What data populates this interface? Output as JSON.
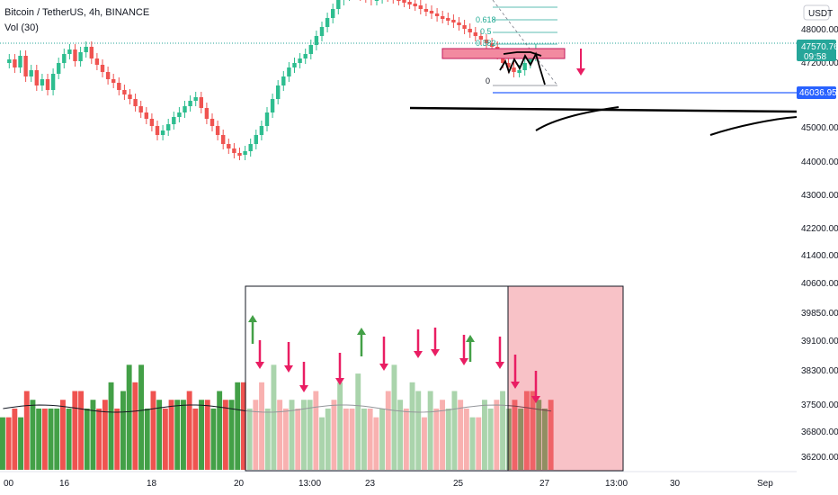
{
  "header": {
    "symbol_title": "Bitcoin / TetherUS, 4h, BINANCE",
    "volume_indicator": "Vol (30)"
  },
  "currency_button": "USDT",
  "price_badges": {
    "last_price": "47570.76",
    "countdown": "09:58",
    "level_price": "46036.95"
  },
  "colors": {
    "up": "#26a69a",
    "bull_candle": "#2dbd8f",
    "bear_candle": "#ef5350",
    "vol_up": "#43a047",
    "vol_down": "#ef5350",
    "arrow_down": "#e91e63",
    "arrow_up": "#43a047",
    "level_line": "#2962ff",
    "zone_fill": "#f0a0a8"
  },
  "fib_labels": [
    "0.618",
    "0.5",
    "0.382",
    "0"
  ],
  "chart_data": {
    "type": "candlestick",
    "title": "Bitcoin / TetherUS, 4h, BINANCE",
    "ylim": [
      35900,
      48900
    ],
    "y_ticks": [
      48000,
      47200,
      46400,
      45000,
      44000,
      43000,
      42200,
      41400,
      40600,
      39850,
      39100,
      38300,
      37500,
      36800,
      36200
    ],
    "y_tick_labels": [
      "48000.00",
      "47200.00",
      "",
      "45000.00",
      "44000.00",
      "43000.00",
      "42200.00",
      "41400.00",
      "40600.00",
      "39850.00",
      "39100.00",
      "38300.00",
      "37500.00",
      "36800.00",
      "36200.00"
    ],
    "x_tick_labels": [
      "00",
      "16",
      "18",
      "20",
      "13:00",
      "23",
      "25",
      "27",
      "13:00",
      "30",
      "Sep"
    ],
    "last_price": 47570.76,
    "marked_level": 46036.95,
    "volume_ma_period": 30,
    "volume": {
      "up_color": "green",
      "down_color": "red",
      "values": [
        6,
        6,
        7,
        6,
        9,
        8,
        7,
        7,
        7,
        7,
        8,
        7,
        9,
        9,
        7,
        8,
        7,
        8,
        10,
        7,
        9,
        12,
        10,
        12,
        7,
        9,
        8,
        7,
        8,
        8,
        8,
        9,
        7,
        8,
        8,
        7,
        9,
        8,
        8,
        10,
        10,
        7,
        8,
        10,
        7,
        12,
        8,
        7,
        8,
        7,
        8,
        8,
        9,
        6,
        7,
        8,
        10,
        7,
        7,
        11,
        7,
        7,
        6,
        7,
        9,
        12,
        8,
        7,
        10,
        9,
        6,
        9,
        7,
        8,
        7,
        9,
        8,
        7,
        6,
        6,
        8,
        7,
        8,
        9,
        7,
        8,
        7,
        9,
        9,
        8,
        7,
        8
      ]
    }
  }
}
